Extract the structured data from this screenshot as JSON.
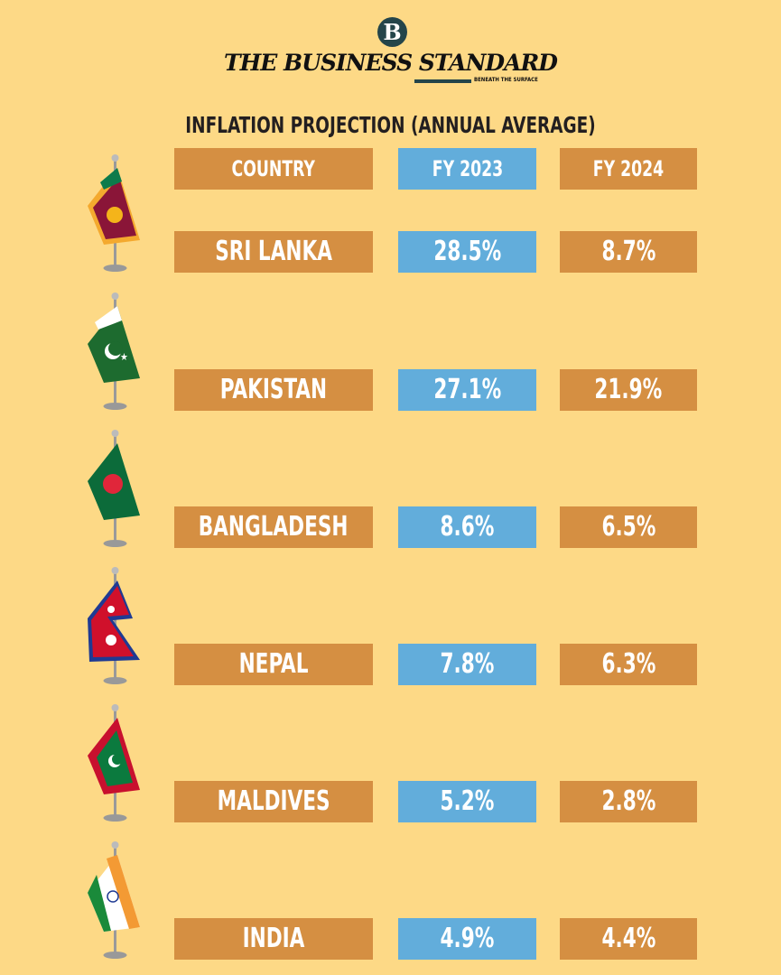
{
  "header": {
    "logo_mark": "B",
    "brand": "THE BUSINESS STANDARD",
    "tagline": "BENEATH THE SURFACE"
  },
  "colors": {
    "background": "#FDD986",
    "orange": "#D58F42",
    "blue": "#62ADDB"
  },
  "chart_data": {
    "type": "table",
    "title": "INFLATION PROJECTION (ANNUAL AVERAGE)",
    "columns": [
      "COUNTRY",
      "FY 2023",
      "FY 2024"
    ],
    "rows": [
      {
        "country": "SRI LANKA",
        "fy2023": "28.5%",
        "fy2024": "8.7%",
        "flag": "sri-lanka"
      },
      {
        "country": "PAKISTAN",
        "fy2023": "27.1%",
        "fy2024": "21.9%",
        "flag": "pakistan"
      },
      {
        "country": "BANGLADESH",
        "fy2023": "8.6%",
        "fy2024": "6.5%",
        "flag": "bangladesh"
      },
      {
        "country": "NEPAL",
        "fy2023": "7.8%",
        "fy2024": "6.3%",
        "flag": "nepal"
      },
      {
        "country": "MALDIVES",
        "fy2023": "5.2%",
        "fy2024": "2.8%",
        "flag": "maldives"
      },
      {
        "country": "INDIA",
        "fy2023": "4.9%",
        "fy2024": "4.4%",
        "flag": "india"
      }
    ]
  }
}
